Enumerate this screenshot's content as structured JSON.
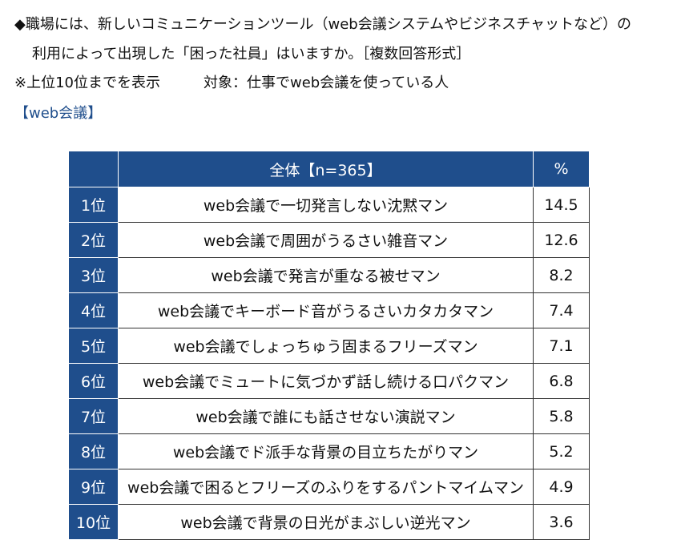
{
  "header": {
    "question_line1": "◆職場には、新しいコミュニケーションツール（web会議システムやビジネスチャットなど）の",
    "question_line2": "利用によって出現した「困った社員」はいますか。［複数回答形式］",
    "note": "※上位10位までを表示　　　対象：仕事でweb会議を使っている人",
    "section": "【web会議】"
  },
  "table": {
    "columns": [
      "全体【n=365】",
      "%"
    ],
    "rows": [
      [
        "1位",
        "web会議で一切発言しない沈黙マン",
        "14.5"
      ],
      [
        "2位",
        "web会議で周囲がうるさい雑音マン",
        "12.6"
      ],
      [
        "3位",
        "web会議で発言が重なる被せマン",
        "8.2"
      ],
      [
        "4位",
        "web会議でキーボード音がうるさいカタカタマン",
        "7.4"
      ],
      [
        "5位",
        "web会議でしょっちゅう固まるフリーズマン",
        "7.1"
      ],
      [
        "6位",
        "web会議でミュートに気づかず話し続ける口パクマン",
        "6.8"
      ],
      [
        "7位",
        "web会議で誰にも話させない演説マン",
        "5.8"
      ],
      [
        "8位",
        "web会議でド派手な背景の目立ちたがりマン",
        "5.2"
      ],
      [
        "9位",
        "web会議で困るとフリーズのふりをするパントマイムマン",
        "4.9"
      ],
      [
        "10位",
        "web会議で背景の日光がまぶしい逆光マン",
        "3.6"
      ]
    ]
  }
}
